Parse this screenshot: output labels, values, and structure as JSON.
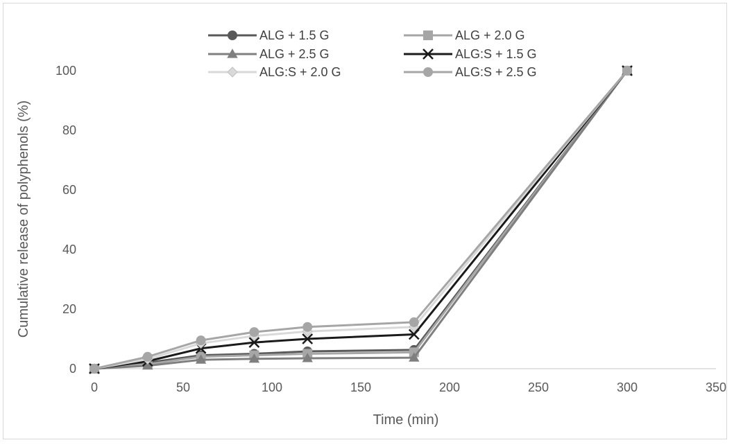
{
  "chart_data": {
    "type": "line",
    "title": "",
    "xlabel": "Time (min)",
    "ylabel": "Cumulative release of polyphenols (%)",
    "xlim": [
      0,
      350
    ],
    "ylim": [
      0,
      100
    ],
    "xticks": [
      0,
      50,
      100,
      150,
      200,
      250,
      300,
      350
    ],
    "yticks": [
      0,
      20,
      40,
      60,
      80,
      100
    ],
    "grid": false,
    "legend_position": "top",
    "x": [
      0,
      30,
      60,
      90,
      120,
      180,
      300
    ],
    "series": [
      {
        "name": "ALG + 1.5 G",
        "values": [
          0,
          2.0,
          4.5,
          5.0,
          5.8,
          6.3,
          100
        ],
        "color": "#595959",
        "marker": "circle"
      },
      {
        "name": "ALG + 2.0 G",
        "values": [
          0,
          1.5,
          4.0,
          4.5,
          5.0,
          5.5,
          100
        ],
        "color": "#a6a6a6",
        "marker": "square"
      },
      {
        "name": "ALG + 2.5 G",
        "values": [
          0,
          1.0,
          3.0,
          3.3,
          3.5,
          3.7,
          100
        ],
        "color": "#7f7f7f",
        "marker": "triangle"
      },
      {
        "name": "ALG:S + 1.5 G",
        "values": [
          0,
          2.5,
          6.8,
          8.8,
          10.0,
          11.5,
          100
        ],
        "color": "#1a1a1a",
        "marker": "x"
      },
      {
        "name": "ALG:S + 2.0 G",
        "values": [
          0,
          3.2,
          8.5,
          11.0,
          12.5,
          14.0,
          100
        ],
        "color": "#d9d9d9",
        "marker": "diamond"
      },
      {
        "name": "ALG:S + 2.5 G",
        "values": [
          0,
          4.0,
          9.5,
          12.3,
          14.0,
          15.6,
          100
        ],
        "color": "#a6a6a6",
        "marker": "circle"
      }
    ]
  }
}
